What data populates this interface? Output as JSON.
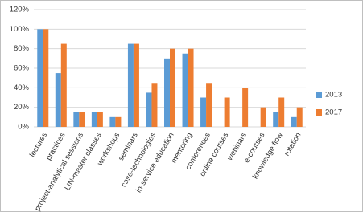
{
  "chart_data": {
    "type": "bar",
    "categories": [
      "lectures",
      "practices",
      "project-analytical sessions",
      "LIN-master classes",
      "workshops",
      "seminars",
      "case-technologies",
      "in-service education",
      "mentoring",
      "conferences",
      "online courses",
      "webinars",
      "e-courses",
      "knowledge flow",
      "rotation"
    ],
    "series": [
      {
        "name": "2013",
        "color": "#5b9bd5",
        "values": [
          100,
          55,
          15,
          15,
          10,
          85,
          35,
          70,
          75,
          30,
          0,
          0,
          0,
          15,
          10
        ]
      },
      {
        "name": "2017",
        "color": "#ed7d31",
        "values": [
          100,
          85,
          15,
          15,
          10,
          85,
          45,
          80,
          80,
          45,
          30,
          40,
          20,
          30,
          20
        ]
      }
    ],
    "ylim": [
      0,
      120
    ],
    "yticks": [
      {
        "value": 0,
        "label": "0%"
      },
      {
        "value": 20,
        "label": "20%"
      },
      {
        "value": 40,
        "label": "40%"
      },
      {
        "value": 60,
        "label": "60%"
      },
      {
        "value": 80,
        "label": "80%"
      },
      {
        "value": 100,
        "label": "100%"
      },
      {
        "value": 120,
        "label": "120%"
      }
    ],
    "grid": true,
    "legend": "right"
  }
}
